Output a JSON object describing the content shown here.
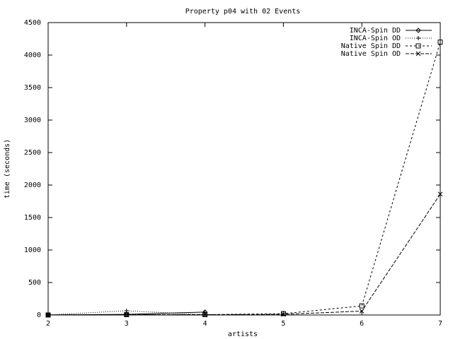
{
  "chart_data": {
    "type": "line",
    "title": "Property p04 with 02 Events",
    "x_label": "artists",
    "y_label": "time (seconds)",
    "xlim": [
      2,
      7
    ],
    "xticks": [
      2,
      3,
      4,
      5,
      6,
      7
    ],
    "ylim": [
      0,
      4500
    ],
    "yticks": [
      0,
      500,
      1000,
      1500,
      2000,
      2500,
      3000,
      3500,
      4000,
      4500
    ],
    "legend": "top-right",
    "series": [
      {
        "name": "INCA-Spin DD",
        "color": "#000000",
        "dash": "none",
        "marker": "diamond",
        "x": [
          2,
          3,
          4
        ],
        "values": [
          1,
          10,
          45
        ]
      },
      {
        "name": "INCA-Spin OD",
        "color": "#000000",
        "dash": "1,2",
        "marker": "plus",
        "x": [
          2,
          3,
          4
        ],
        "values": [
          1,
          65,
          5
        ]
      },
      {
        "name": "Native Spin DD",
        "color": "#000000",
        "dash": "3,3",
        "marker": "square",
        "x": [
          2,
          3,
          4,
          5,
          6,
          7
        ],
        "values": [
          0,
          5,
          5,
          20,
          140,
          4200
        ]
      },
      {
        "name": "Native Spin OD",
        "color": "#000000",
        "dash": "5,2",
        "marker": "cross",
        "x": [
          2,
          3,
          4,
          5,
          6,
          7
        ],
        "values": [
          0,
          5,
          5,
          10,
          60,
          1860
        ]
      }
    ]
  }
}
